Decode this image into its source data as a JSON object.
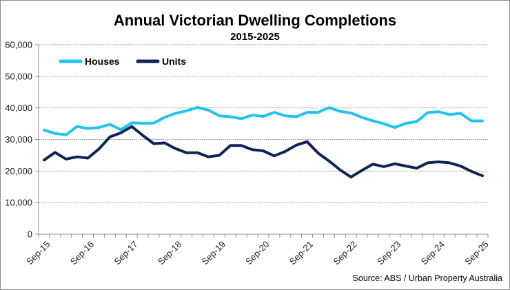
{
  "chart_data": {
    "type": "line",
    "title": "Annual Victorian Dwelling Completions",
    "subtitle": "2015-2025",
    "xlabel": "",
    "ylabel": "",
    "ylim": [
      0,
      60000
    ],
    "yticks": [
      0,
      10000,
      20000,
      30000,
      40000,
      50000,
      60000
    ],
    "ytick_labels": [
      "0",
      "10,000",
      "20,000",
      "30,000",
      "40,000",
      "50,000",
      "60,000"
    ],
    "x": [
      "Sep-15",
      "Dec-15",
      "Mar-16",
      "Jun-16",
      "Sep-16",
      "Dec-16",
      "Mar-17",
      "Jun-17",
      "Sep-17",
      "Dec-17",
      "Mar-18",
      "Jun-18",
      "Sep-18",
      "Dec-18",
      "Mar-19",
      "Jun-19",
      "Sep-19",
      "Dec-19",
      "Mar-20",
      "Jun-20",
      "Sep-20",
      "Dec-20",
      "Mar-21",
      "Jun-21",
      "Sep-21",
      "Dec-21",
      "Mar-22",
      "Jun-22",
      "Sep-22",
      "Dec-22",
      "Mar-23",
      "Jun-23",
      "Sep-23",
      "Dec-23",
      "Mar-24",
      "Jun-24",
      "Sep-24",
      "Dec-24",
      "Mar-25",
      "Jun-25",
      "Sep-25"
    ],
    "xtick_labels": [
      "Sep-15",
      "Sep-16",
      "Sep-17",
      "Sep-18",
      "Sep-19",
      "Sep-20",
      "Sep-21",
      "Sep-22",
      "Sep-23",
      "Sep-24",
      "Sep-25"
    ],
    "grid": true,
    "legend_position": "top-left",
    "series": [
      {
        "name": "Houses",
        "color": "#22c3ef",
        "values": [
          33000,
          31900,
          31500,
          34100,
          33500,
          33800,
          34800,
          33100,
          35300,
          35150,
          35200,
          37000,
          38300,
          39100,
          40200,
          39300,
          37500,
          37200,
          36600,
          37700,
          37300,
          38600,
          37500,
          37200,
          38600,
          38600,
          40100,
          38900,
          38400,
          37000,
          35900,
          35000,
          33800,
          35100,
          35700,
          38500,
          38800,
          37900,
          38300,
          35900,
          35900
        ]
      },
      {
        "name": "Units",
        "color": "#0e2456",
        "values": [
          23500,
          25900,
          23800,
          24500,
          24100,
          27000,
          30800,
          32100,
          34100,
          31300,
          28700,
          28900,
          27100,
          25800,
          25800,
          24500,
          25000,
          28100,
          28100,
          26800,
          26400,
          24800,
          26200,
          28200,
          29300,
          25700,
          23200,
          20400,
          18100,
          20200,
          22200,
          21400,
          22300,
          21600,
          20900,
          22600,
          22900,
          22600,
          21600,
          19900,
          18500
        ]
      }
    ],
    "source": "Source: ABS / Urban Property Australia"
  }
}
